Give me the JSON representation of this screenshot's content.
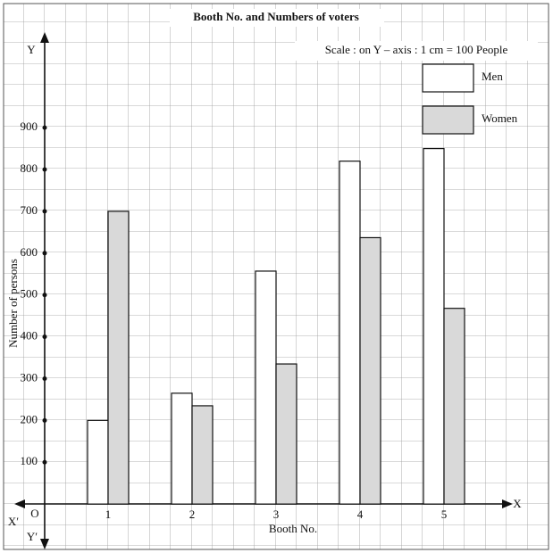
{
  "chart_data": {
    "type": "bar",
    "title": "Booth No. and Numbers of voters",
    "scale_note": "Scale : on Y – axis : 1 cm = 100 People",
    "x_label": "Booth No.",
    "y_label": "Number of persons",
    "origin_label": "O",
    "x_axis_label": "X",
    "x_neg_label": "X′",
    "y_axis_label": "Y",
    "y_neg_label": "Y′",
    "categories": [
      "1",
      "2",
      "3",
      "4",
      "5"
    ],
    "series": [
      {
        "name": "Men",
        "color": "#ffffff",
        "values": [
          200,
          265,
          557,
          820,
          850
        ]
      },
      {
        "name": "Women",
        "color": "#d9d9d9",
        "values": [
          700,
          235,
          335,
          637,
          468
        ]
      }
    ],
    "ylim": [
      -100,
      1120
    ],
    "yticks": [
      100,
      200,
      300,
      400,
      500,
      600,
      700,
      800,
      900
    ]
  }
}
